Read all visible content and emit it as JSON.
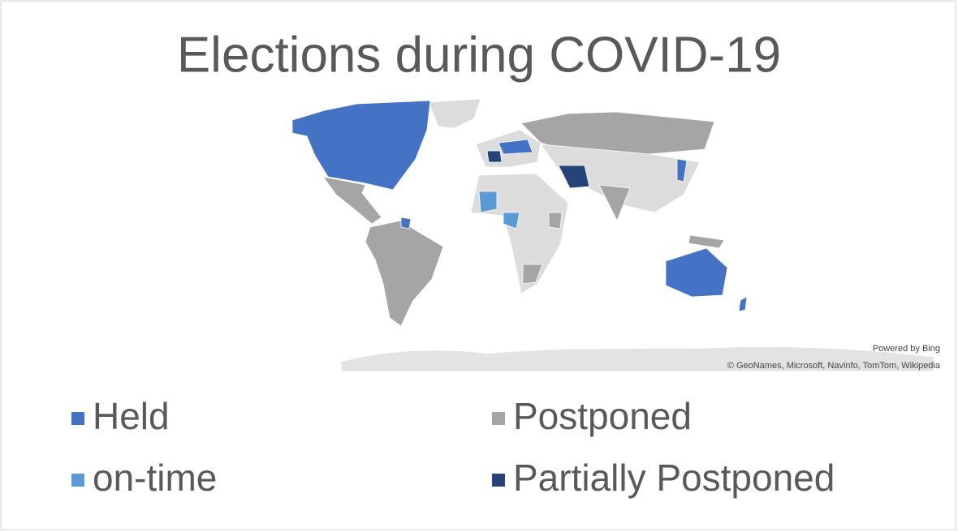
{
  "title": "Elections during COVID-19",
  "legend": {
    "items": [
      {
        "label": "Held",
        "color": "#4472c4"
      },
      {
        "label": "Postponed",
        "color": "#a5a5a5"
      },
      {
        "label": "on-time",
        "color": "#5b9bd5"
      },
      {
        "label": "Partially Postponed",
        "color": "#264478"
      }
    ]
  },
  "attribution": {
    "powered": "Powered by Bing",
    "credits": "© GeoNames, Microsoft, Navinfo, TomTom, Wikipedia"
  }
}
